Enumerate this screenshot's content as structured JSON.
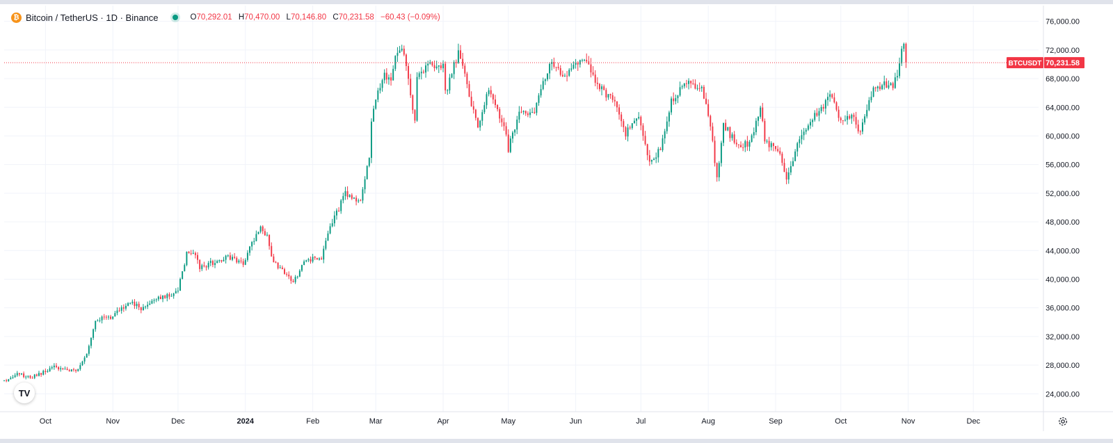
{
  "header": {
    "coin_glyph": "₿",
    "title": "Bitcoin / TetherUS · 1D · Binance",
    "status_color": "#089981",
    "ohlc": {
      "o_label": "O",
      "o_value": "70,292.01",
      "h_label": "H",
      "h_value": "70,470.00",
      "l_label": "L",
      "l_value": "70,146.80",
      "c_label": "C",
      "c_value": "70,231.58",
      "change": "−60.43 (−0.09%)"
    }
  },
  "colors": {
    "up": "#089981",
    "down": "#f23645",
    "grid": "#f0f3fa",
    "text": "#131722"
  },
  "logo_text": "TV",
  "settings_icon": "gear-icon",
  "chart_data": {
    "type": "candlestick",
    "symbol": "BTCUSDT",
    "last_price": 70231.58,
    "last_price_label": "70,231.58",
    "ylim": [
      21500,
      78200
    ],
    "y_ticks": [
      24000,
      28000,
      32000,
      36000,
      40000,
      44000,
      48000,
      52000,
      56000,
      60000,
      64000,
      68000,
      72000,
      76000
    ],
    "y_tick_labels": [
      "24,000.00",
      "28,000.00",
      "32,000.00",
      "36,000.00",
      "40,000.00",
      "44,000.00",
      "48,000.00",
      "52,000.00",
      "56,000.00",
      "60,000.00",
      "64,000.00",
      "68,000.00",
      "72,000.00",
      "76,000.00"
    ],
    "x_labels": [
      {
        "label": "Oct",
        "date": "2023-10-01",
        "bold": false
      },
      {
        "label": "Nov",
        "date": "2023-11-01",
        "bold": false
      },
      {
        "label": "Dec",
        "date": "2023-12-01",
        "bold": false
      },
      {
        "label": "2024",
        "date": "2024-01-01",
        "bold": true
      },
      {
        "label": "Feb",
        "date": "2024-02-01",
        "bold": false
      },
      {
        "label": "Mar",
        "date": "2024-03-01",
        "bold": false
      },
      {
        "label": "Apr",
        "date": "2024-04-01",
        "bold": false
      },
      {
        "label": "May",
        "date": "2024-05-01",
        "bold": false
      },
      {
        "label": "Jun",
        "date": "2024-06-01",
        "bold": false
      },
      {
        "label": "Jul",
        "date": "2024-07-01",
        "bold": false
      },
      {
        "label": "Aug",
        "date": "2024-08-01",
        "bold": false
      },
      {
        "label": "Sep",
        "date": "2024-09-01",
        "bold": false
      },
      {
        "label": "Oct",
        "date": "2024-10-01",
        "bold": false
      },
      {
        "label": "Nov",
        "date": "2024-11-01",
        "bold": false
      },
      {
        "label": "Dec",
        "date": "2024-12-01",
        "bold": false
      }
    ],
    "x_range": [
      "2023-09-12",
      "2024-12-31"
    ],
    "candles_start": "2023-09-12",
    "candles_end": "2024-10-31",
    "close_anchors": [
      [
        "2023-09-12",
        25800
      ],
      [
        "2023-09-18",
        26800
      ],
      [
        "2023-09-24",
        26300
      ],
      [
        "2023-09-30",
        27000
      ],
      [
        "2023-10-05",
        27800
      ],
      [
        "2023-10-10",
        27400
      ],
      [
        "2023-10-15",
        27100
      ],
      [
        "2023-10-20",
        29700
      ],
      [
        "2023-10-24",
        34300
      ],
      [
        "2023-10-31",
        34700
      ],
      [
        "2023-11-09",
        36800
      ],
      [
        "2023-11-15",
        35800
      ],
      [
        "2023-11-20",
        37300
      ],
      [
        "2023-11-28",
        37800
      ],
      [
        "2023-12-01",
        38700
      ],
      [
        "2023-12-05",
        43500
      ],
      [
        "2023-12-08",
        44000
      ],
      [
        "2023-12-11",
        41500
      ],
      [
        "2023-12-18",
        42500
      ],
      [
        "2023-12-24",
        43200
      ],
      [
        "2023-12-31",
        42200
      ],
      [
        "2024-01-03",
        44500
      ],
      [
        "2024-01-08",
        47000
      ],
      [
        "2024-01-11",
        46000
      ],
      [
        "2024-01-13",
        42800
      ],
      [
        "2024-01-18",
        41300
      ],
      [
        "2024-01-23",
        39500
      ],
      [
        "2024-01-28",
        42200
      ],
      [
        "2024-02-01",
        43000
      ],
      [
        "2024-02-05",
        43000
      ],
      [
        "2024-02-09",
        47500
      ],
      [
        "2024-02-13",
        49800
      ],
      [
        "2024-02-15",
        52000
      ],
      [
        "2024-02-23",
        51000
      ],
      [
        "2024-02-27",
        57000
      ],
      [
        "2024-02-28",
        62500
      ],
      [
        "2024-03-04",
        68300
      ],
      [
        "2024-03-08",
        68300
      ],
      [
        "2024-03-11",
        72200
      ],
      [
        "2024-03-14",
        71400
      ],
      [
        "2024-03-19",
        62000
      ],
      [
        "2024-03-20",
        67800
      ],
      [
        "2024-03-26",
        70000
      ],
      [
        "2024-04-01",
        69700
      ],
      [
        "2024-04-02",
        66000
      ],
      [
        "2024-04-08",
        71600
      ],
      [
        "2024-04-12",
        67000
      ],
      [
        "2024-04-17",
        61300
      ],
      [
        "2024-04-22",
        66800
      ],
      [
        "2024-04-30",
        60600
      ],
      [
        "2024-05-01",
        58200
      ],
      [
        "2024-05-06",
        63200
      ],
      [
        "2024-05-13",
        63000
      ],
      [
        "2024-05-15",
        66200
      ],
      [
        "2024-05-21",
        70100
      ],
      [
        "2024-05-27",
        68400
      ],
      [
        "2024-06-05",
        71000
      ],
      [
        "2024-06-11",
        66900
      ],
      [
        "2024-06-18",
        65200
      ],
      [
        "2024-06-24",
        60300
      ],
      [
        "2024-06-30",
        62700
      ],
      [
        "2024-07-05",
        56600
      ],
      [
        "2024-07-10",
        58000
      ],
      [
        "2024-07-15",
        64700
      ],
      [
        "2024-07-22",
        67600
      ],
      [
        "2024-07-29",
        66800
      ],
      [
        "2024-08-02",
        61400
      ],
      [
        "2024-08-05",
        54000
      ],
      [
        "2024-08-08",
        61700
      ],
      [
        "2024-08-14",
        58700
      ],
      [
        "2024-08-20",
        59000
      ],
      [
        "2024-08-25",
        64000
      ],
      [
        "2024-08-27",
        59400
      ],
      [
        "2024-09-03",
        57500
      ],
      [
        "2024-09-06",
        53900
      ],
      [
        "2024-09-13",
        60500
      ],
      [
        "2024-09-20",
        63300
      ],
      [
        "2024-09-27",
        65800
      ],
      [
        "2024-10-01",
        61800
      ],
      [
        "2024-10-06",
        62800
      ],
      [
        "2024-10-10",
        60300
      ],
      [
        "2024-10-15",
        66000
      ],
      [
        "2024-10-21",
        67400
      ],
      [
        "2024-10-25",
        66600
      ],
      [
        "2024-10-28",
        69900
      ],
      [
        "2024-10-29",
        72700
      ],
      [
        "2024-10-30",
        72300
      ],
      [
        "2024-10-31",
        70231
      ]
    ]
  }
}
